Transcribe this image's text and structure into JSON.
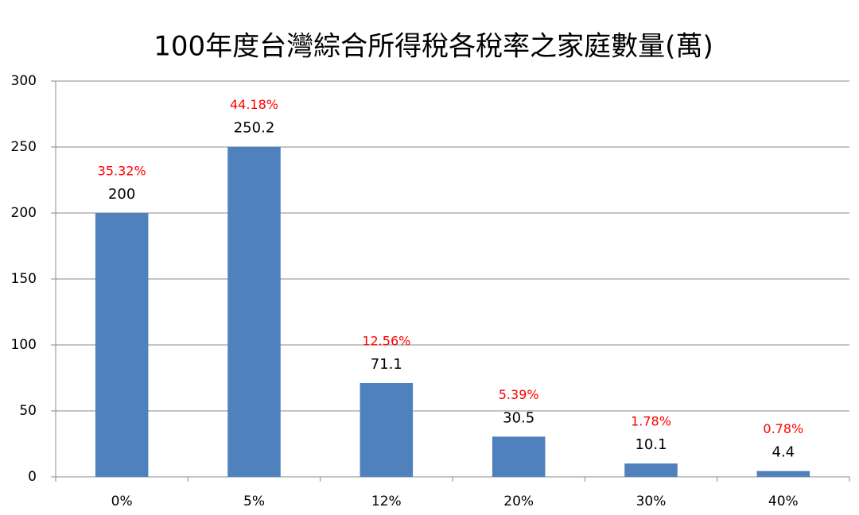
{
  "chart_data": {
    "type": "bar",
    "title": "100年度台灣綜合所得稅各稅率之家庭數量(萬)",
    "categories": [
      "0%",
      "5%",
      "12%",
      "20%",
      "30%",
      "40%"
    ],
    "values": [
      200,
      250.2,
      71.1,
      30.5,
      10.1,
      4.4
    ],
    "annotations": [
      "35.32%",
      "44.18%",
      "12.56%",
      "5.39%",
      "1.78%",
      "0.78%"
    ],
    "color": "#4f81bd",
    "ylim": [
      0,
      300
    ],
    "yticks": [
      0,
      50,
      100,
      150,
      200,
      250,
      300
    ],
    "grid": true
  }
}
